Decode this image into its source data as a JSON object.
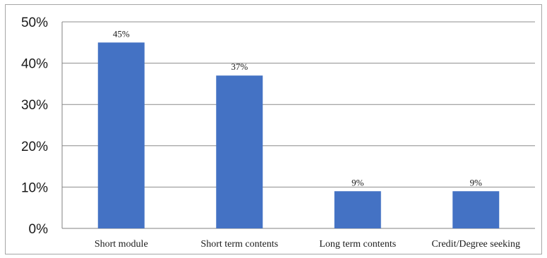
{
  "chart_data": {
    "type": "bar",
    "categories": [
      "Short module",
      "Short term contents",
      "Long term contents",
      "Credit/Degree seeking"
    ],
    "values": [
      45,
      37,
      9,
      9
    ],
    "data_labels": [
      "45%",
      "37%",
      "9%",
      "9%"
    ],
    "ylim": [
      0,
      50
    ],
    "yticks": [
      0,
      10,
      20,
      30,
      40,
      50
    ],
    "ytick_labels": [
      "0%",
      "10%",
      "20%",
      "30%",
      "40%",
      "50%"
    ],
    "grid": true,
    "bar_color": "#4472c4"
  }
}
